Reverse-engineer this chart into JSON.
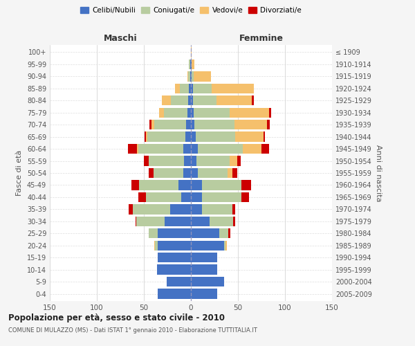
{
  "age_groups": [
    "0-4",
    "5-9",
    "10-14",
    "15-19",
    "20-24",
    "25-29",
    "30-34",
    "35-39",
    "40-44",
    "45-49",
    "50-54",
    "55-59",
    "60-64",
    "65-69",
    "70-74",
    "75-79",
    "80-84",
    "85-89",
    "90-94",
    "95-99",
    "100+"
  ],
  "birth_years": [
    "2005-2009",
    "2000-2004",
    "1995-1999",
    "1990-1994",
    "1985-1989",
    "1980-1984",
    "1975-1979",
    "1970-1974",
    "1965-1969",
    "1960-1964",
    "1955-1959",
    "1950-1954",
    "1945-1949",
    "1940-1944",
    "1935-1939",
    "1930-1934",
    "1925-1929",
    "1920-1924",
    "1915-1919",
    "1910-1914",
    "≤ 1909"
  ],
  "male_celibi": [
    35,
    26,
    36,
    35,
    35,
    35,
    28,
    22,
    10,
    13,
    8,
    7,
    8,
    6,
    5,
    4,
    3,
    2,
    1,
    1,
    0
  ],
  "male_coniugati": [
    0,
    0,
    0,
    0,
    3,
    10,
    30,
    40,
    38,
    42,
    32,
    38,
    48,
    40,
    34,
    25,
    18,
    10,
    2,
    1,
    0
  ],
  "male_vedovi": [
    0,
    0,
    0,
    0,
    1,
    0,
    0,
    0,
    0,
    0,
    0,
    0,
    1,
    2,
    3,
    5,
    10,
    5,
    1,
    0,
    0
  ],
  "male_divorziati": [
    0,
    0,
    0,
    0,
    0,
    0,
    1,
    4,
    8,
    8,
    5,
    5,
    10,
    1,
    2,
    0,
    0,
    0,
    0,
    0,
    0
  ],
  "female_celibi": [
    28,
    35,
    28,
    28,
    35,
    30,
    20,
    12,
    12,
    12,
    7,
    6,
    7,
    5,
    4,
    3,
    2,
    2,
    1,
    1,
    0
  ],
  "female_coniugati": [
    0,
    0,
    0,
    0,
    2,
    10,
    25,
    32,
    42,
    42,
    32,
    35,
    48,
    42,
    42,
    38,
    25,
    20,
    2,
    0,
    0
  ],
  "female_vedovi": [
    0,
    0,
    0,
    0,
    1,
    0,
    0,
    0,
    0,
    0,
    5,
    8,
    20,
    30,
    35,
    42,
    38,
    45,
    18,
    3,
    1
  ],
  "female_divorziati": [
    0,
    0,
    0,
    0,
    0,
    2,
    2,
    3,
    8,
    10,
    5,
    4,
    8,
    2,
    3,
    2,
    2,
    0,
    0,
    0,
    0
  ],
  "colors": {
    "celibi": "#4472c4",
    "coniugati": "#b8cca0",
    "vedovi": "#f5c06c",
    "divorziati": "#cc0000"
  },
  "xlim": 150,
  "title": "Popolazione per età, sesso e stato civile - 2010",
  "subtitle": "COMUNE DI MULAZZO (MS) - Dati ISTAT 1° gennaio 2010 - Elaborazione TUTTITALIA.IT",
  "ylabel_left": "Fasce di età",
  "ylabel_right": "Anni di nascita",
  "xlabel_left": "Maschi",
  "xlabel_right": "Femmine",
  "background_color": "#f5f5f5",
  "plot_bg_color": "#ffffff"
}
